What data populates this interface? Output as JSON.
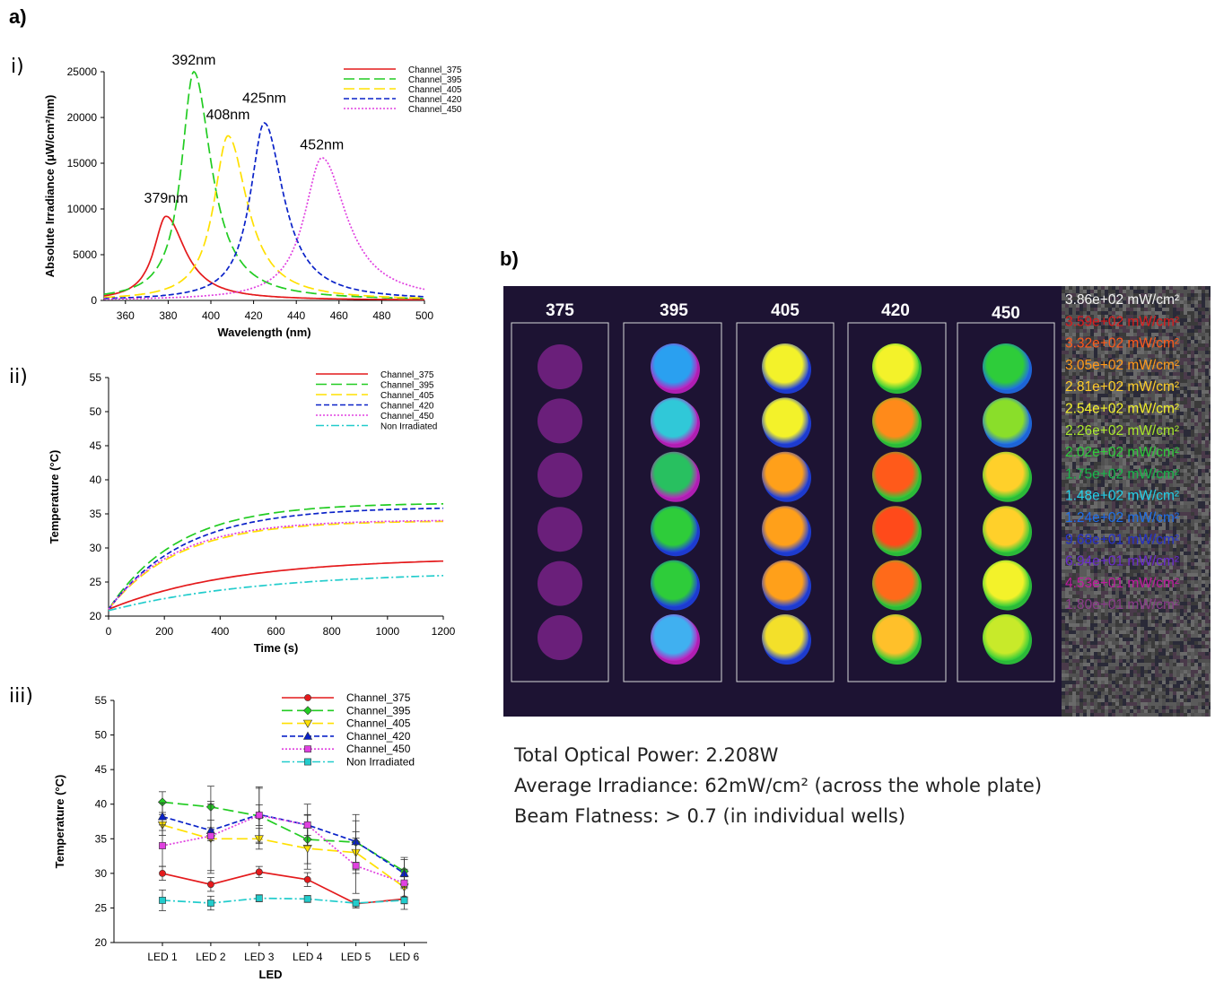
{
  "labels": {
    "a": "a)",
    "b": "b)",
    "i": "i)",
    "ii": "ii)",
    "iii": "iii)"
  },
  "chart_data": [
    {
      "id": "spectra",
      "type": "line",
      "xlabel": "Wavelength (nm)",
      "ylabel": "Absolute Irradiance (μW/cm²/nm)",
      "xlim": [
        350,
        500
      ],
      "ylim": [
        0,
        25000
      ],
      "xticks": [
        360,
        380,
        400,
        420,
        440,
        460,
        480,
        500
      ],
      "yticks": [
        0,
        5000,
        10000,
        15000,
        20000,
        25000
      ],
      "legend": "top-right",
      "series": [
        {
          "name": "Channel_375",
          "color": "#e41a1c",
          "dash": "solid",
          "peak_x": 379,
          "peak_y": 9200,
          "width_left": 7,
          "width_right": 11
        },
        {
          "name": "Channel_395",
          "color": "#22cc22",
          "dash": "long",
          "peak_x": 392,
          "peak_y": 25000,
          "width_left": 7,
          "width_right": 10
        },
        {
          "name": "Channel_405",
          "color": "#ffe000",
          "dash": "long",
          "peak_x": 408,
          "peak_y": 18000,
          "width_left": 8,
          "width_right": 11
        },
        {
          "name": "Channel_420",
          "color": "#0a22c8",
          "dash": "short",
          "peak_x": 425,
          "peak_y": 19400,
          "width_left": 8,
          "width_right": 11
        },
        {
          "name": "Channel_450",
          "color": "#e040e0",
          "dash": "dot",
          "peak_x": 452,
          "peak_y": 15600,
          "width_left": 10,
          "width_right": 14
        }
      ],
      "annotations": [
        {
          "text": "379nm",
          "x": 379,
          "y": 10700
        },
        {
          "text": "392nm",
          "x": 392,
          "y": 25800
        },
        {
          "text": "408nm",
          "x": 408,
          "y": 19800
        },
        {
          "text": "425nm",
          "x": 425,
          "y": 21600
        },
        {
          "text": "452nm",
          "x": 452,
          "y": 16500
        }
      ]
    },
    {
      "id": "temperature-time",
      "type": "line",
      "xlabel": "Time (s)",
      "ylabel": "Temperature (°C)",
      "xlim": [
        0,
        1200
      ],
      "ylim": [
        20,
        55
      ],
      "xticks": [
        0,
        200,
        400,
        600,
        800,
        1000,
        1200
      ],
      "yticks": [
        20,
        25,
        30,
        35,
        40,
        45,
        50,
        55
      ],
      "legend": "top-right",
      "series": [
        {
          "name": "Channel_375",
          "color": "#e41a1c",
          "dash": "solid",
          "start": 21,
          "plateau": 28.6,
          "tau": 450
        },
        {
          "name": "Channel_395",
          "color": "#22cc22",
          "dash": "long",
          "start": 21,
          "plateau": 36.6,
          "tau": 250
        },
        {
          "name": "Channel_405",
          "color": "#ffe000",
          "dash": "long",
          "start": 21,
          "plateau": 34.0,
          "tau": 250
        },
        {
          "name": "Channel_420",
          "color": "#0a22c8",
          "dash": "short",
          "start": 21,
          "plateau": 36.0,
          "tau": 270
        },
        {
          "name": "Channel_450",
          "color": "#e040e0",
          "dash": "dot",
          "start": 21,
          "plateau": 34.1,
          "tau": 240
        },
        {
          "name": "Non Irradiated",
          "color": "#22cccc",
          "dash": "dashdot",
          "start": 20.8,
          "plateau": 26.6,
          "tau": 550
        }
      ]
    },
    {
      "id": "temperature-led",
      "type": "line",
      "xlabel": "LED",
      "ylabel": "Temperature (°C)",
      "categories": [
        "LED 1",
        "LED 2",
        "LED 3",
        "LED 4",
        "LED 5",
        "LED 6"
      ],
      "ylim": [
        20,
        55
      ],
      "yticks": [
        20,
        25,
        30,
        35,
        40,
        45,
        50,
        55
      ],
      "legend": "top-right",
      "series": [
        {
          "name": "Channel_375",
          "color": "#e41a1c",
          "dash": "solid",
          "marker": "circle",
          "values": [
            30.0,
            28.4,
            30.2,
            29.1,
            25.6,
            26.3
          ],
          "err": [
            1.0,
            1.0,
            0.8,
            1.0,
            0.6,
            1.5
          ]
        },
        {
          "name": "Channel_395",
          "color": "#22cc22",
          "dash": "long",
          "marker": "diamond",
          "values": [
            40.3,
            39.6,
            38.3,
            34.9,
            34.5,
            30.3
          ],
          "err": [
            1.5,
            3.0,
            4.0,
            3.5,
            4.0,
            2.0
          ]
        },
        {
          "name": "Channel_405",
          "color": "#ffe000",
          "dash": "long",
          "marker": "triangle-down",
          "values": [
            37.0,
            35.0,
            35.0,
            33.6,
            33.0,
            28.0
          ],
          "err": [
            1.5,
            5.0,
            1.5,
            3.0,
            3.0,
            1.5
          ]
        },
        {
          "name": "Channel_420",
          "color": "#0a22c8",
          "dash": "short",
          "marker": "triangle-up",
          "values": [
            38.2,
            36.2,
            38.5,
            37.0,
            34.6,
            30.0
          ],
          "err": [
            2.0,
            1.5,
            4.0,
            3.0,
            3.0,
            2.0
          ]
        },
        {
          "name": "Channel_450",
          "color": "#e040e0",
          "dash": "dot",
          "marker": "square",
          "values": [
            34.0,
            35.4,
            38.4,
            37.0,
            31.1,
            28.6
          ],
          "err": [
            3.0,
            5.0,
            1.5,
            1.5,
            4.0,
            2.0
          ]
        },
        {
          "name": "Non Irradiated",
          "color": "#22cccc",
          "dash": "dashdot",
          "marker": "square",
          "values": [
            26.1,
            25.7,
            26.4,
            26.3,
            25.7,
            26.1
          ],
          "err": [
            1.5,
            1.0,
            0.5,
            0.5,
            0.5,
            0.5
          ]
        }
      ]
    },
    {
      "id": "irradiance-map",
      "type": "heatmap",
      "columns": [
        "375",
        "395",
        "405",
        "420",
        "450"
      ],
      "rows": 6,
      "scale": [
        {
          "label": "3.86e+02 mW/cm²",
          "color": "#f2f2f2"
        },
        {
          "label": "3.59e+02 mW/cm²",
          "color": "#dd1b1b"
        },
        {
          "label": "3.32e+02 mW/cm²",
          "color": "#ff5a1a"
        },
        {
          "label": "3.05e+02 mW/cm²",
          "color": "#ff9a1a"
        },
        {
          "label": "2.81e+02 mW/cm²",
          "color": "#ffcf2a"
        },
        {
          "label": "2.54e+02 mW/cm²",
          "color": "#f3f22a"
        },
        {
          "label": "2.26e+02 mW/cm²",
          "color": "#a8e82a"
        },
        {
          "label": "2.02e+02 mW/cm²",
          "color": "#2ecc3a"
        },
        {
          "label": "1.75e+02 mW/cm²",
          "color": "#18b84a"
        },
        {
          "label": "1.48e+02 mW/cm²",
          "color": "#22d0e8"
        },
        {
          "label": "1.24e+02 mW/cm²",
          "color": "#1e6ee8"
        },
        {
          "label": "9.68e+01 mW/cm²",
          "color": "#2430d0"
        },
        {
          "label": "6.94e+01 mW/cm²",
          "color": "#6a2ad0"
        },
        {
          "label": "4.53e+01 mW/cm²",
          "color": "#c01aa0"
        },
        {
          "label": "1.80e+01 mW/cm²",
          "color": "#8a3a8a"
        }
      ],
      "wells": {
        "375": [
          {
            "c": "#6a1f7a",
            "e": "#6a1f7a"
          },
          {
            "c": "#6a1f7a",
            "e": "#6a1f7a"
          },
          {
            "c": "#6a1f7a",
            "e": "#6a1f7a"
          },
          {
            "c": "#6a1f7a",
            "e": "#6a1f7a"
          },
          {
            "c": "#6a1f7a",
            "e": "#6a1f7a"
          },
          {
            "c": "#6a1f7a",
            "e": "#6a1f7a"
          }
        ],
        "395": [
          {
            "c": "#2aa0f0",
            "e": "#c020c0"
          },
          {
            "c": "#30c8d8",
            "e": "#c020c0"
          },
          {
            "c": "#28c060",
            "e": "#c020c0"
          },
          {
            "c": "#2ecc3a",
            "e": "#1e40e0"
          },
          {
            "c": "#2ecc3a",
            "e": "#1e40e0"
          },
          {
            "c": "#40b0f0",
            "e": "#c020c0"
          }
        ],
        "405": [
          {
            "c": "#f3f22a",
            "e": "#1e40e0"
          },
          {
            "c": "#f3f22a",
            "e": "#1e40e0"
          },
          {
            "c": "#ffa01a",
            "e": "#1e40e0"
          },
          {
            "c": "#ffa01a",
            "e": "#1e40e0"
          },
          {
            "c": "#ffa01a",
            "e": "#1e40e0"
          },
          {
            "c": "#f3e02a",
            "e": "#1e40e0"
          }
        ],
        "420": [
          {
            "c": "#f3f22a",
            "e": "#2ecc3a"
          },
          {
            "c": "#ff8a1a",
            "e": "#2ecc3a"
          },
          {
            "c": "#ff5a1a",
            "e": "#2ecc3a"
          },
          {
            "c": "#ff4a1a",
            "e": "#2ecc3a"
          },
          {
            "c": "#ff6a1a",
            "e": "#2ecc3a"
          },
          {
            "c": "#ffc02a",
            "e": "#2ecc3a"
          }
        ],
        "450": [
          {
            "c": "#2ecc3a",
            "e": "#1e6ee8"
          },
          {
            "c": "#8ade2a",
            "e": "#1e6ee8"
          },
          {
            "c": "#ffd02a",
            "e": "#2ecc3a"
          },
          {
            "c": "#ffd02a",
            "e": "#2ecc3a"
          },
          {
            "c": "#f3f22a",
            "e": "#2ecc3a"
          },
          {
            "c": "#c8ea2a",
            "e": "#2ecc3a"
          }
        ]
      }
    }
  ],
  "summary": {
    "power": "Total Optical Power: 2.208W",
    "irradiance": "Average Irradiance: 62mW/cm² (across the whole plate)",
    "flatness": "Beam Flatness: > 0.7 (in individual wells)"
  }
}
